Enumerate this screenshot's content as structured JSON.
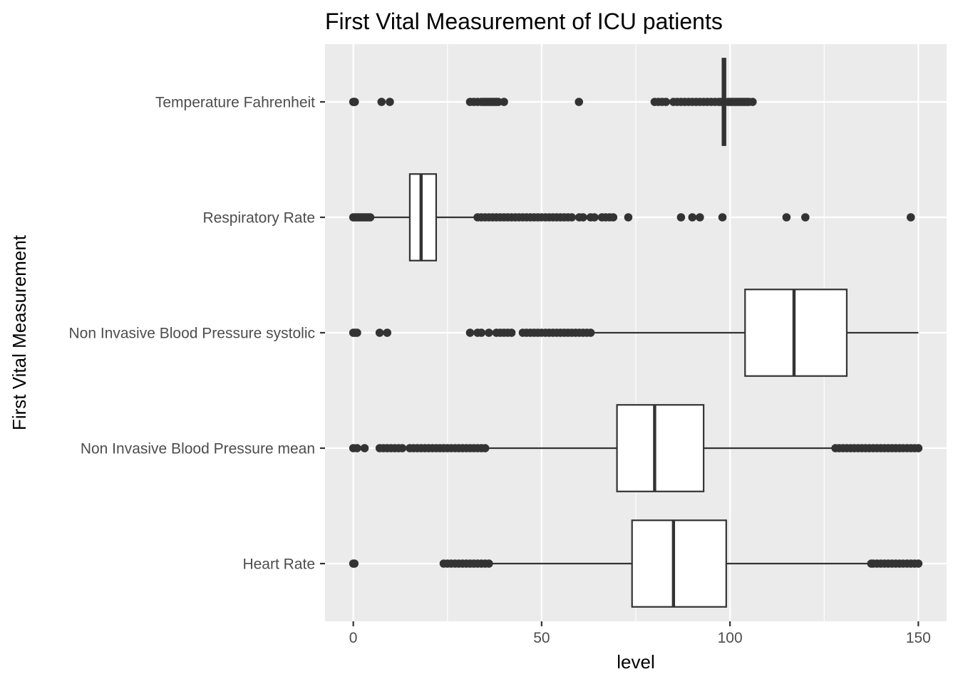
{
  "chart_data": {
    "type": "boxplot",
    "orientation": "horizontal",
    "title": "First Vital Measurement of ICU patients",
    "xlabel": "level",
    "ylabel": "First Vital Measurement",
    "xlim": [
      -7.5,
      157.5
    ],
    "x_ticks": [
      0,
      50,
      100,
      150
    ],
    "x_minor_ticks": [
      25,
      75,
      125
    ],
    "grid": true,
    "categories": [
      "Temperature Fahrenheit",
      "Respiratory Rate",
      "Non Invasive Blood Pressure systolic",
      "Non Invasive Blood Pressure mean",
      "Heart Rate"
    ],
    "boxes": [
      {
        "category": "Temperature Fahrenheit",
        "lower_whisker": 98.0,
        "q1": 98.0,
        "median": 98.3,
        "q3": 98.8,
        "upper_whisker": 99.1,
        "outliers": [
          0,
          0.2,
          0.4,
          7.5,
          9.7,
          31,
          32,
          33,
          34,
          34.5,
          35,
          35.5,
          36,
          36.5,
          37,
          37.5,
          38,
          38.5,
          40,
          59.9,
          80,
          81,
          82,
          83,
          85,
          86,
          87,
          88,
          89,
          90,
          91,
          92,
          93,
          94,
          95,
          96,
          97,
          97.5,
          99.5,
          100,
          100.5,
          101,
          101.5,
          102,
          102.5,
          103,
          103.5,
          104,
          104.5,
          105,
          106
        ]
      },
      {
        "category": "Respiratory Rate",
        "lower_whisker": 5,
        "q1": 15,
        "median": 18,
        "q3": 22,
        "upper_whisker": 32,
        "outliers": [
          0,
          0.5,
          1,
          1.5,
          2,
          2.5,
          3,
          3.5,
          4,
          4.5,
          33,
          34,
          35,
          36,
          37,
          38,
          39,
          40,
          41,
          42,
          43,
          44,
          45,
          46,
          47,
          48,
          49,
          50,
          51,
          52,
          53,
          54,
          55,
          56,
          57,
          58,
          60,
          61,
          63,
          64,
          66,
          67,
          68,
          69,
          73,
          87,
          90,
          92,
          98,
          115,
          120,
          148
        ]
      },
      {
        "category": "Non Invasive Blood Pressure systolic",
        "lower_whisker": 63,
        "q1": 104,
        "median": 117,
        "q3": 131,
        "upper_whisker": 150,
        "outliers": [
          0,
          0.5,
          1,
          7,
          9,
          31,
          33,
          34,
          36,
          38,
          39,
          40,
          41,
          42,
          45,
          46,
          47,
          48,
          49,
          50,
          51,
          52,
          53,
          54,
          55,
          56,
          57,
          58,
          59,
          60,
          61,
          62,
          63
        ]
      },
      {
        "category": "Non Invasive Blood Pressure mean",
        "lower_whisker": 36,
        "q1": 70,
        "median": 80,
        "q3": 93,
        "upper_whisker": 127,
        "outliers": [
          0,
          1,
          3,
          7,
          8,
          9,
          10,
          11,
          12,
          13,
          15,
          16,
          17,
          18,
          19,
          20,
          21,
          22,
          23,
          24,
          25,
          26,
          27,
          28,
          29,
          30,
          31,
          32,
          33,
          34,
          35,
          128,
          129,
          130,
          131,
          132,
          133,
          134,
          135,
          136,
          137,
          138,
          139,
          140,
          141,
          142,
          143,
          144,
          145,
          146,
          147,
          148,
          149,
          150
        ]
      },
      {
        "category": "Heart Rate",
        "lower_whisker": 37,
        "q1": 74,
        "median": 85,
        "q3": 99,
        "upper_whisker": 137,
        "outliers": [
          0,
          0.3,
          24,
          25,
          26,
          27,
          28,
          29,
          30,
          31,
          32,
          33,
          34,
          35,
          36,
          137.5,
          138,
          139,
          140,
          141,
          142,
          143,
          144,
          145,
          146,
          147,
          148,
          149,
          150
        ]
      }
    ]
  }
}
